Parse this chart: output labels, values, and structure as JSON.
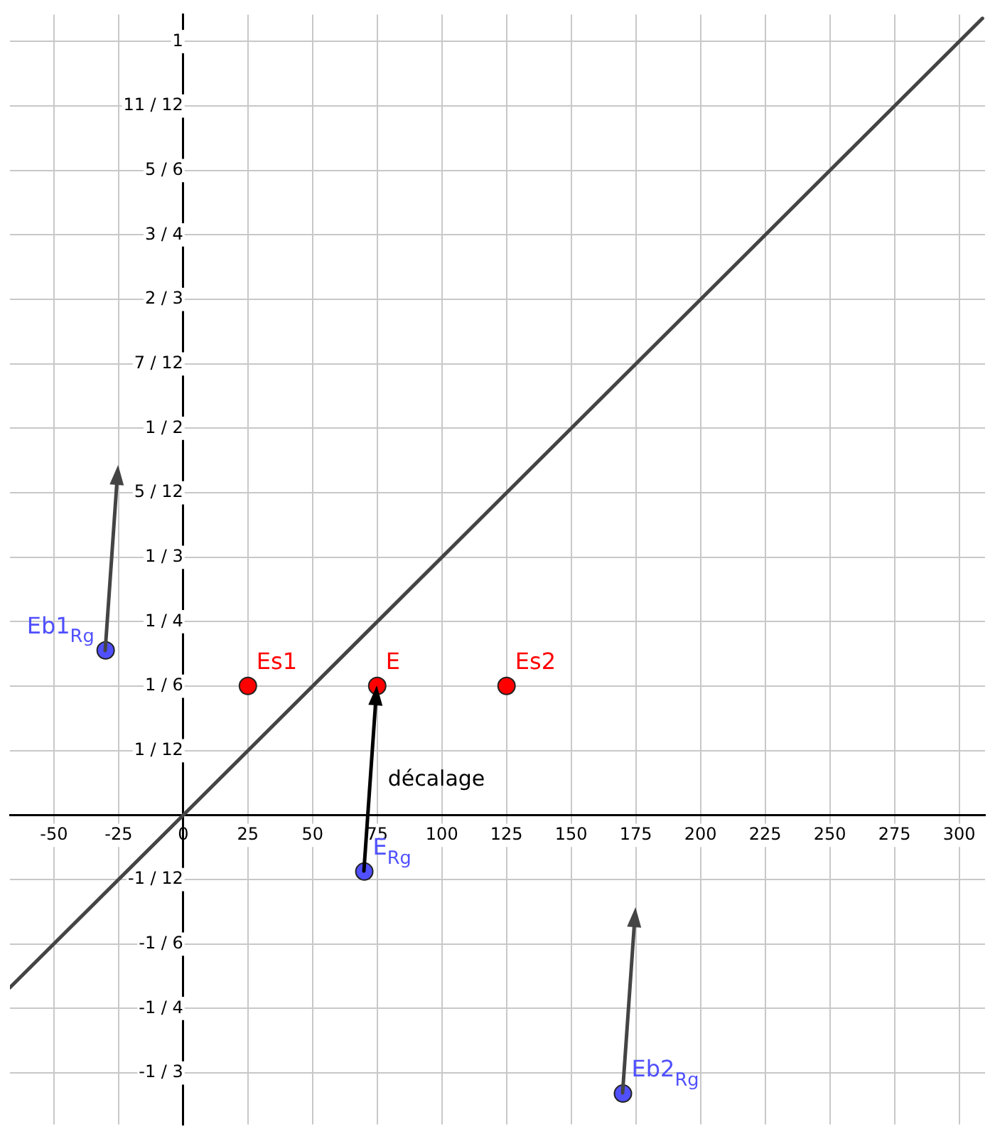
{
  "chart_data": {
    "type": "scatter",
    "xlim": [
      -67,
      310
    ],
    "ylim": [
      -0.4,
      1.035
    ],
    "xticks": [
      -50,
      -25,
      0,
      25,
      50,
      75,
      100,
      125,
      150,
      175,
      200,
      225,
      250,
      275,
      300
    ],
    "yticks": [
      {
        "value": -0.3333,
        "label": "-1 / 3"
      },
      {
        "value": -0.25,
        "label": "-1 / 4"
      },
      {
        "value": -0.1667,
        "label": "-1 / 6"
      },
      {
        "value": -0.0833,
        "label": "-1 / 12"
      },
      {
        "value": 0.0833,
        "label": "1 / 12"
      },
      {
        "value": 0.1667,
        "label": "1 / 6"
      },
      {
        "value": 0.25,
        "label": "1 / 4"
      },
      {
        "value": 0.3333,
        "label": "1 / 3"
      },
      {
        "value": 0.4167,
        "label": "5 / 12"
      },
      {
        "value": 0.5,
        "label": "1 / 2"
      },
      {
        "value": 0.5833,
        "label": "7 / 12"
      },
      {
        "value": 0.6667,
        "label": "2 / 3"
      },
      {
        "value": 0.75,
        "label": "3 / 4"
      },
      {
        "value": 0.8333,
        "label": "5 / 6"
      },
      {
        "value": 0.9167,
        "label": "11 / 12"
      },
      {
        "value": 1,
        "label": "1"
      }
    ],
    "grid": true,
    "legend": false,
    "series": [
      {
        "type": "line",
        "color": "#444444",
        "marker": "none",
        "x": [
          -67,
          0,
          309
        ],
        "values": [
          -0.223,
          0,
          1.03
        ]
      },
      {
        "name": "Es1",
        "color": "#ff0000",
        "marker": "circle",
        "x": [
          25
        ],
        "values": [
          0.167
        ]
      },
      {
        "name": "E",
        "color": "#ff0000",
        "marker": "circle",
        "x": [
          75
        ],
        "values": [
          0.167
        ]
      },
      {
        "name": "Es2",
        "color": "#ff0000",
        "marker": "circle",
        "x": [
          125
        ],
        "values": [
          0.167
        ]
      },
      {
        "name": "E$_{Rg}$",
        "color": "#5050ff",
        "marker": "circle",
        "x": [
          70
        ],
        "values": [
          -0.073
        ]
      },
      {
        "name": "Eb1$_{Rg}$",
        "color": "#5050ff",
        "marker": "circle",
        "x": [
          -30
        ],
        "values": [
          0.213
        ]
      },
      {
        "name": "Eb2$_{Rg}$",
        "color": "#5050ff",
        "marker": "circle",
        "x": [
          170
        ],
        "values": [
          -0.36
        ]
      }
    ],
    "annotations": [
      "décalage"
    ]
  }
}
